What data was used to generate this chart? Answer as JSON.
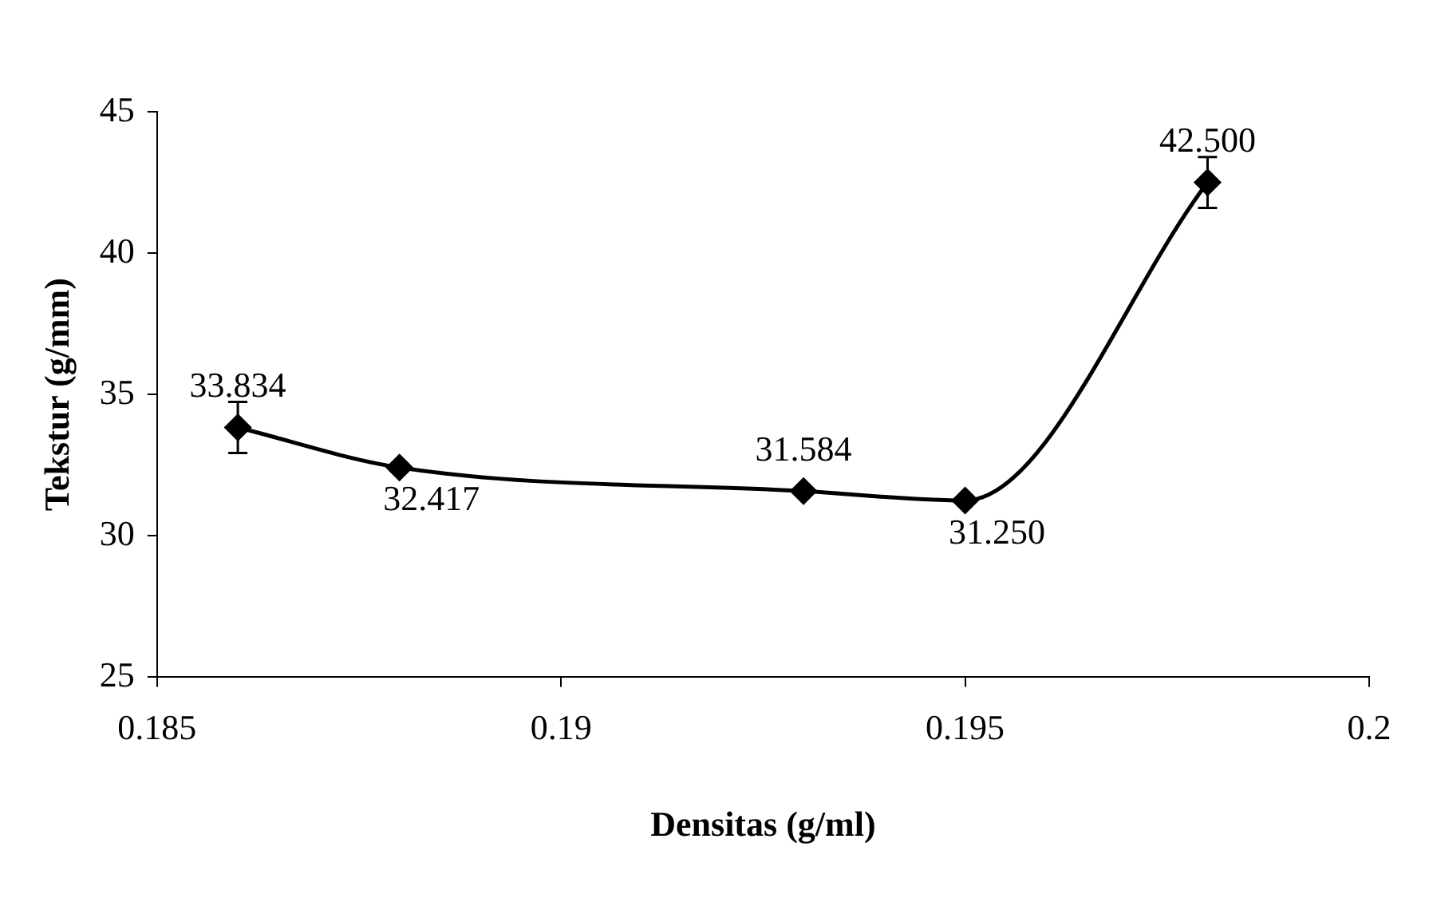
{
  "chart_data": {
    "type": "line",
    "xlabel": "Densitas (g/ml)",
    "ylabel": "Tekstur (g/mm)",
    "x": [
      0.186,
      0.188,
      0.193,
      0.195,
      0.198
    ],
    "values": [
      33.834,
      32.417,
      31.584,
      31.25,
      42.5
    ],
    "value_labels": [
      "33.834",
      "32.417",
      "31.584",
      "31.250",
      "42.500"
    ],
    "errors": [
      0.9,
      null,
      null,
      null,
      0.9
    ],
    "color": "#000000",
    "marker": "diamond",
    "grid": false,
    "legend": false,
    "xlim": [
      0.185,
      0.2
    ],
    "xticks": [
      0.185,
      0.19,
      0.195,
      0.2
    ],
    "ylim": [
      25,
      45
    ],
    "yticks": [
      25,
      30,
      35,
      40,
      45
    ]
  }
}
